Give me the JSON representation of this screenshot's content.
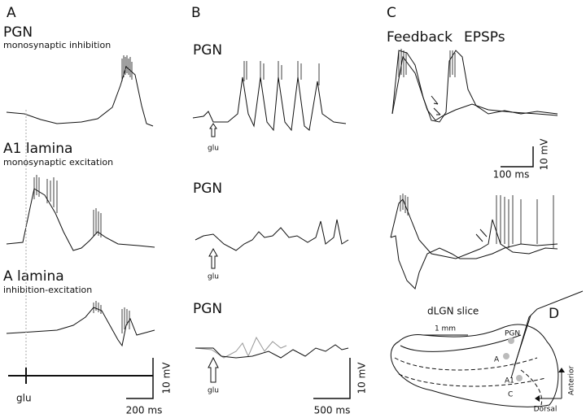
{
  "panels": {
    "a": {
      "label": "A",
      "traces": [
        {
          "title": "PGN",
          "subtitle": "monosynaptic inhibition"
        },
        {
          "title": "A1 lamina",
          "subtitle": "monosynaptic excitation"
        },
        {
          "title": "A lamina",
          "subtitle": "inhibition-excitation"
        }
      ],
      "stimulus": "glu",
      "scale_v": "10 mV",
      "scale_t": "200 ms"
    },
    "b": {
      "label": "B",
      "traces": [
        {
          "title": "PGN",
          "stimulus": "glu"
        },
        {
          "title": "PGN",
          "stimulus": "glu"
        },
        {
          "title": "PGN",
          "stimulus": "glu"
        }
      ],
      "scale_v": "10 mV",
      "scale_t": "500 ms"
    },
    "c": {
      "label": "C",
      "title": "Feedback",
      "title2": "EPSPs",
      "scale_v": "10 mV",
      "scale_t": "100 ms"
    },
    "d": {
      "label": "D",
      "title": "dLGN slice",
      "scale": "1 mm",
      "regions": [
        "PGN",
        "A",
        "A1",
        "C"
      ],
      "axes": {
        "vertical": "Anterior",
        "horizontal": "Dorsal"
      }
    }
  }
}
